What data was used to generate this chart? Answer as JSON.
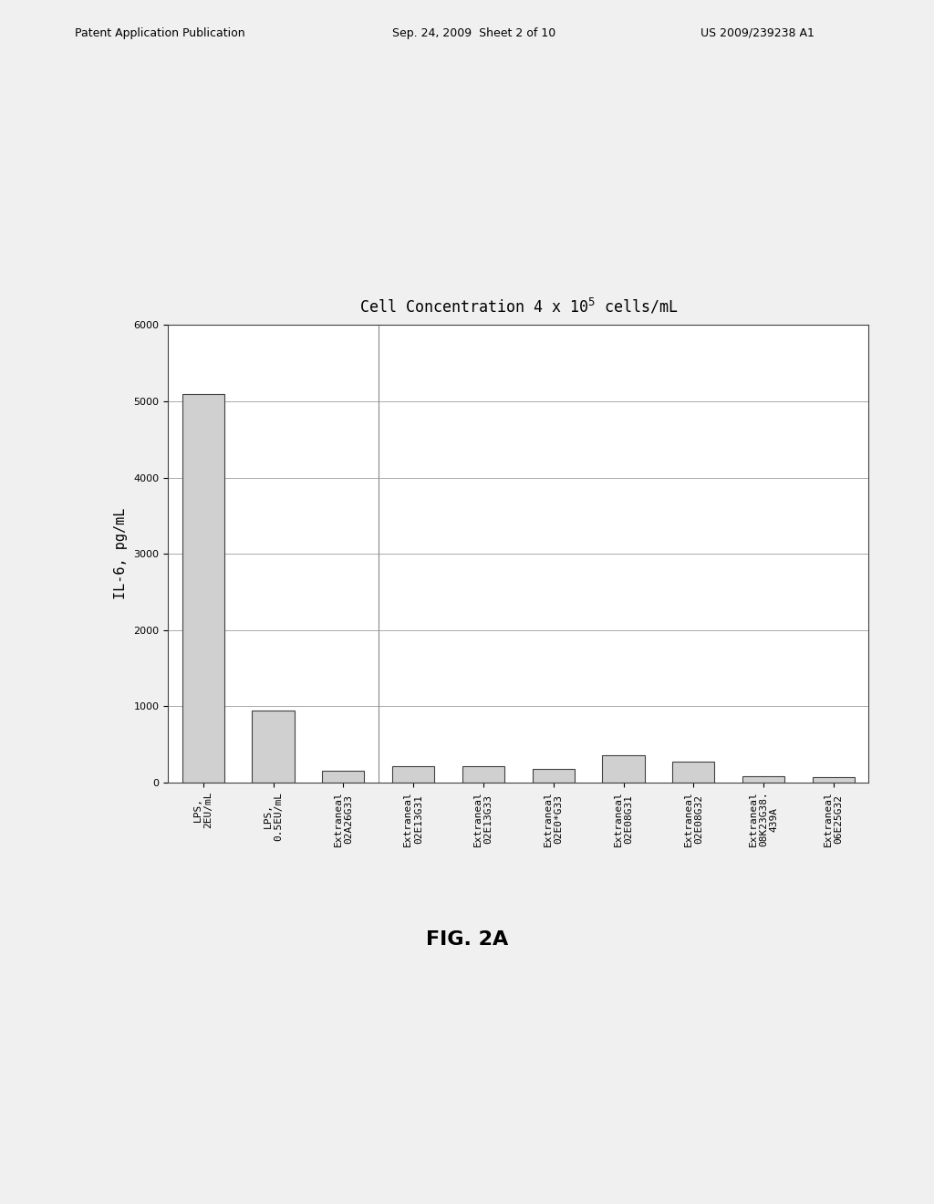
{
  "title": "Cell Concentration 4 x 10$^5$ cells/mL",
  "ylabel": "IL-6, pg/mL",
  "ylim": [
    0,
    6000
  ],
  "yticks": [
    0,
    1000,
    2000,
    3000,
    4000,
    5000,
    6000
  ],
  "categories": [
    "LPS,\n2EU/mL",
    "LPS,\n0.5EU/mL",
    "Extraneal\n02A26G33",
    "Extraneal\n02E13G31",
    "Extraneal\n02E13G33",
    "Extraneal\n02E0*G33",
    "Extraneal\n02E08G31",
    "Extraneal\n02E08G32",
    "Extraneal\n08K23G38.\n439A",
    "Extraneal\n06E25G32"
  ],
  "values": [
    5100,
    950,
    150,
    220,
    215,
    185,
    360,
    270,
    80,
    75
  ],
  "bar_color": "#d0d0d0",
  "bar_edge_color": "#404040",
  "background_color": "#ffffff",
  "figure_bg_color": "#f0f0f0",
  "title_fontsize": 12,
  "ylabel_fontsize": 11,
  "tick_fontsize": 8,
  "bar_width": 0.6
}
